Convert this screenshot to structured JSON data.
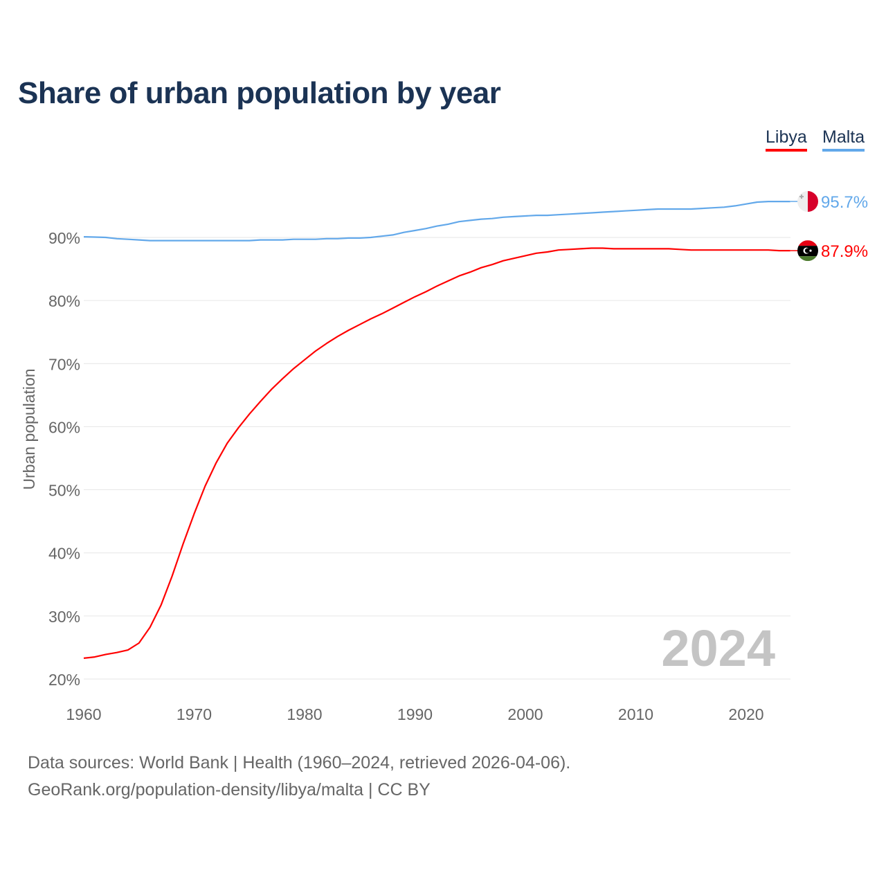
{
  "chart_data": {
    "type": "line",
    "title": "Share of urban population by year",
    "xlabel": "",
    "ylabel": "Urban population",
    "xlim": [
      1960,
      2024
    ],
    "ylim": [
      20,
      97
    ],
    "x_ticks": [
      1960,
      1970,
      1980,
      1990,
      2000,
      2010,
      2020
    ],
    "y_ticks": [
      20,
      30,
      40,
      50,
      60,
      70,
      80,
      90
    ],
    "y_tick_labels": [
      "20%",
      "30%",
      "40%",
      "50%",
      "60%",
      "70%",
      "80%",
      "90%"
    ],
    "grid": true,
    "legend_position": "top-right",
    "year_watermark": "2024",
    "x": [
      1960,
      1961,
      1962,
      1963,
      1964,
      1965,
      1966,
      1967,
      1968,
      1969,
      1970,
      1971,
      1972,
      1973,
      1974,
      1975,
      1976,
      1977,
      1978,
      1979,
      1980,
      1981,
      1982,
      1983,
      1984,
      1985,
      1986,
      1987,
      1988,
      1989,
      1990,
      1991,
      1992,
      1993,
      1994,
      1995,
      1996,
      1997,
      1998,
      1999,
      2000,
      2001,
      2002,
      2003,
      2004,
      2005,
      2006,
      2007,
      2008,
      2009,
      2010,
      2011,
      2012,
      2013,
      2014,
      2015,
      2016,
      2017,
      2018,
      2019,
      2020,
      2021,
      2022,
      2023,
      2024
    ],
    "series": [
      {
        "name": "Libya",
        "color": "#ff0000",
        "end_label": "87.9%",
        "values": [
          23.3,
          23.5,
          23.9,
          24.2,
          24.6,
          25.7,
          28.2,
          31.7,
          36.3,
          41.4,
          46.2,
          50.6,
          54.3,
          57.4,
          59.8,
          62.0,
          64.0,
          65.9,
          67.6,
          69.2,
          70.6,
          72.0,
          73.2,
          74.3,
          75.3,
          76.2,
          77.1,
          77.9,
          78.8,
          79.7,
          80.6,
          81.4,
          82.3,
          83.1,
          83.9,
          84.5,
          85.2,
          85.7,
          86.3,
          86.7,
          87.1,
          87.5,
          87.7,
          88.0,
          88.1,
          88.2,
          88.3,
          88.3,
          88.2,
          88.2,
          88.2,
          88.2,
          88.2,
          88.2,
          88.1,
          88.0,
          88.0,
          88.0,
          88.0,
          88.0,
          88.0,
          88.0,
          88.0,
          87.9,
          87.9
        ]
      },
      {
        "name": "Malta",
        "color": "#62a8ea",
        "end_label": "95.7%",
        "values": [
          90.1,
          90.05,
          90.0,
          89.8,
          89.7,
          89.6,
          89.5,
          89.5,
          89.5,
          89.5,
          89.5,
          89.5,
          89.5,
          89.5,
          89.5,
          89.5,
          89.6,
          89.6,
          89.6,
          89.7,
          89.7,
          89.7,
          89.8,
          89.8,
          89.9,
          89.9,
          90.0,
          90.2,
          90.4,
          90.8,
          91.1,
          91.4,
          91.8,
          92.1,
          92.5,
          92.7,
          92.9,
          93.0,
          93.2,
          93.3,
          93.4,
          93.5,
          93.5,
          93.6,
          93.7,
          93.8,
          93.9,
          94.0,
          94.1,
          94.2,
          94.3,
          94.4,
          94.5,
          94.5,
          94.5,
          94.5,
          94.6,
          94.7,
          94.8,
          95.0,
          95.3,
          95.6,
          95.7,
          95.7,
          95.7
        ]
      }
    ]
  },
  "footer": {
    "line1": "Data sources: World Bank | Health (1960–2024, retrieved 2026-04-06).",
    "line2": "GeoRank.org/population-density/libya/malta | CC BY"
  }
}
